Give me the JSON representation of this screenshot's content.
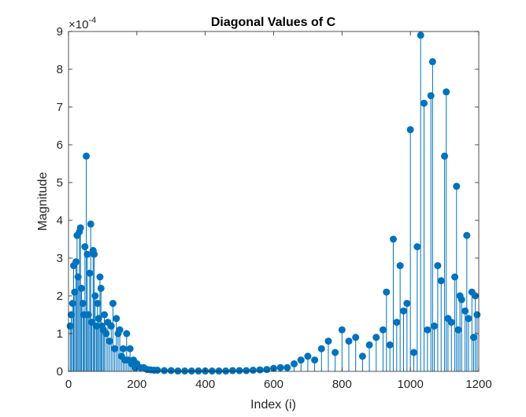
{
  "chart_data": {
    "type": "scatter",
    "style": "stem",
    "title": "Diagonal Values of C",
    "xlabel": "Index (i)",
    "ylabel": "Magnitude",
    "exponent_label": "×10",
    "exponent_power": "-4",
    "xlim": [
      0,
      1200
    ],
    "ylim": [
      0,
      0.0009
    ],
    "xticks": [
      0,
      200,
      400,
      600,
      800,
      1000,
      1200
    ],
    "xtick_labels": [
      "0",
      "200",
      "400",
      "600",
      "800",
      "1000",
      "1200"
    ],
    "yticks": [
      0,
      0.0001,
      0.0002,
      0.0003,
      0.0004,
      0.0005,
      0.0006,
      0.0007,
      0.0008,
      0.0009
    ],
    "ytick_labels": [
      "0",
      "1",
      "2",
      "3",
      "4",
      "5",
      "6",
      "7",
      "8",
      "9"
    ],
    "grid": false,
    "legend": "none",
    "series": [
      {
        "color": "#0072BD",
        "x": [
          5,
          8,
          12,
          15,
          18,
          22,
          25,
          28,
          32,
          35,
          38,
          42,
          45,
          48,
          52,
          55,
          58,
          62,
          65,
          68,
          72,
          75,
          78,
          82,
          85,
          88,
          92,
          95,
          98,
          102,
          105,
          110,
          115,
          120,
          125,
          130,
          135,
          140,
          145,
          150,
          155,
          160,
          165,
          170,
          175,
          180,
          185,
          190,
          195,
          200,
          210,
          220,
          230,
          240,
          250,
          260,
          280,
          300,
          320,
          340,
          360,
          380,
          400,
          420,
          440,
          460,
          480,
          500,
          520,
          540,
          560,
          580,
          600,
          620,
          640,
          660,
          680,
          700,
          720,
          740,
          760,
          780,
          800,
          820,
          840,
          860,
          880,
          900,
          920,
          930,
          940,
          950,
          960,
          970,
          980,
          990,
          1000,
          1010,
          1020,
          1030,
          1040,
          1050,
          1060,
          1065,
          1070,
          1080,
          1090,
          1100,
          1105,
          1110,
          1120,
          1130,
          1135,
          1140,
          1145,
          1150,
          1160,
          1165,
          1170,
          1180,
          1185,
          1190,
          1195
        ],
        "y": [
          0.00012,
          0.00015,
          0.00018,
          0.00028,
          0.00021,
          0.00029,
          0.00036,
          0.00025,
          0.00037,
          0.00038,
          0.00022,
          0.00018,
          0.00015,
          0.00033,
          0.00057,
          0.00031,
          0.00015,
          0.00026,
          0.00039,
          0.00013,
          0.00032,
          0.00031,
          0.0002,
          0.00012,
          0.00018,
          0.00014,
          0.00025,
          0.00022,
          0.00012,
          0.00011,
          0.00015,
          0.0001,
          0.00013,
          8e-05,
          0.00012,
          0.00018,
          6e-05,
          0.00014,
          0.0001,
          0.00011,
          4e-05,
          6e-05,
          3e-05,
          0.0001,
          3e-05,
          6e-05,
          2e-05,
          3e-05,
          1e-05,
          2e-05,
          1e-05,
          1e-05,
          5e-06,
          4e-06,
          3e-06,
          3e-06,
          2e-06,
          2e-06,
          1e-06,
          1e-06,
          1e-06,
          1e-06,
          1e-06,
          1e-06,
          1e-06,
          1e-06,
          2e-06,
          2e-06,
          2e-06,
          3e-06,
          4e-06,
          5e-06,
          8e-06,
          1e-05,
          1e-05,
          2e-05,
          3e-05,
          4e-05,
          3e-05,
          6e-05,
          8e-05,
          5e-05,
          0.00011,
          8e-05,
          9e-05,
          4e-05,
          7e-05,
          9e-05,
          0.00011,
          0.00021,
          7e-05,
          0.00035,
          0.00013,
          0.00028,
          0.00016,
          0.00018,
          0.00064,
          5e-05,
          0.00033,
          0.00089,
          0.00071,
          0.00011,
          0.00073,
          0.00082,
          0.00012,
          0.00028,
          0.00024,
          0.00057,
          0.00074,
          0.00014,
          0.00013,
          0.00025,
          0.00049,
          0.00011,
          0.0002,
          0.00019,
          0.00016,
          0.00036,
          0.00014,
          0.00021,
          9e-05,
          0.0002,
          0.00015
        ]
      }
    ]
  }
}
